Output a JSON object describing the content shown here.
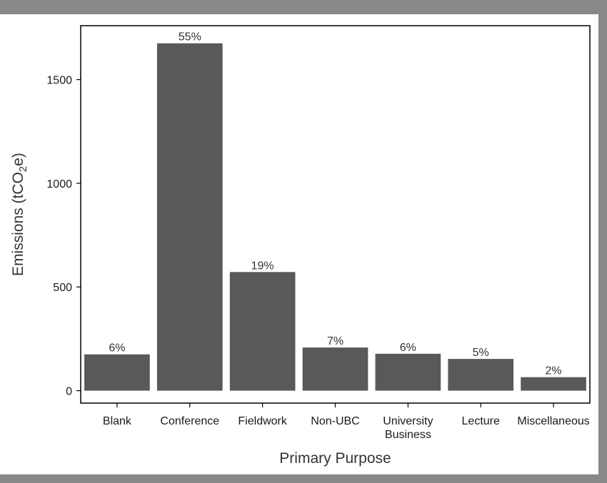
{
  "chart_data": {
    "type": "bar",
    "categories": [
      "Blank",
      "Conference",
      "Fieldwork",
      "Non-UBC",
      "University Business",
      "Lecture",
      "Miscellaneous"
    ],
    "category_lines": [
      [
        "Blank"
      ],
      [
        "Conference"
      ],
      [
        "Fieldwork"
      ],
      [
        "Non-UBC"
      ],
      [
        "University",
        "Business"
      ],
      [
        "Lecture"
      ],
      [
        "Miscellaneous"
      ]
    ],
    "values": [
      175,
      1675,
      572,
      208,
      178,
      153,
      65
    ],
    "data_labels": [
      "6%",
      "55%",
      "19%",
      "7%",
      "6%",
      "5%",
      "2%"
    ],
    "xlabel": "Primary Purpose",
    "ylabel": "Emissions (tCO",
    "ylabel_subscript": "2",
    "ylabel_suffix": "e)",
    "ylim": [
      -60,
      1760
    ],
    "yticks": [
      0,
      500,
      1000,
      1500
    ],
    "grid": false,
    "legend": "none",
    "colors": {
      "bar": "#595959",
      "axis": "#000000",
      "outer_border": "#888888"
    }
  }
}
